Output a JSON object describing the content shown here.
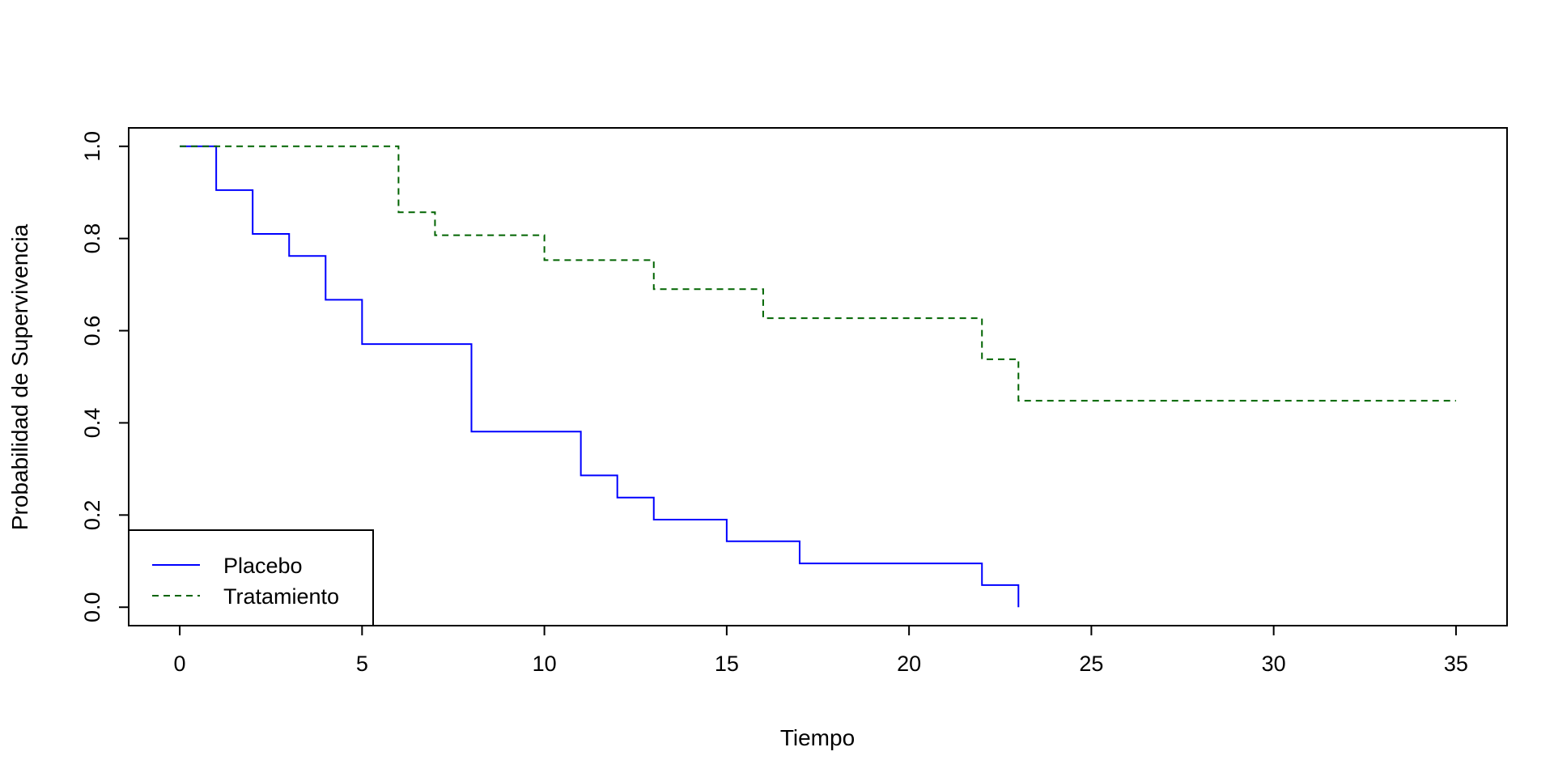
{
  "chart_data": {
    "type": "line",
    "title": "",
    "xlabel": "Tiempo",
    "ylabel": "Probabilidad de Supervivencia",
    "xlim": [
      -1.4,
      36.4
    ],
    "ylim": [
      -0.04,
      1.04
    ],
    "xticks": [
      0,
      5,
      10,
      15,
      20,
      25,
      30,
      35
    ],
    "yticks": [
      0.0,
      0.2,
      0.4,
      0.6,
      0.8,
      1.0
    ],
    "xtick_labels": [
      "0",
      "5",
      "10",
      "15",
      "20",
      "25",
      "30",
      "35"
    ],
    "ytick_labels": [
      "0.0",
      "0.2",
      "0.4",
      "0.6",
      "0.8",
      "1.0"
    ],
    "grid": false,
    "legend_position": "bottom-left",
    "series": [
      {
        "name": "Placebo",
        "color": "#0000FF",
        "line_style": "solid",
        "step": true,
        "times": [
          0,
          1,
          2,
          3,
          4,
          5,
          8,
          11,
          12,
          13,
          15,
          17,
          22,
          23
        ],
        "survival": [
          1.0,
          0.905,
          0.81,
          0.762,
          0.667,
          0.571,
          0.381,
          0.286,
          0.238,
          0.19,
          0.143,
          0.095,
          0.048,
          0.0
        ]
      },
      {
        "name": "Tratamiento",
        "color": "#006400",
        "line_style": "dashed",
        "step": true,
        "times": [
          0,
          6,
          7,
          10,
          13,
          16,
          22,
          23,
          35
        ],
        "survival": [
          1.0,
          0.857,
          0.807,
          0.753,
          0.69,
          0.627,
          0.538,
          0.448,
          0.448
        ]
      }
    ]
  }
}
